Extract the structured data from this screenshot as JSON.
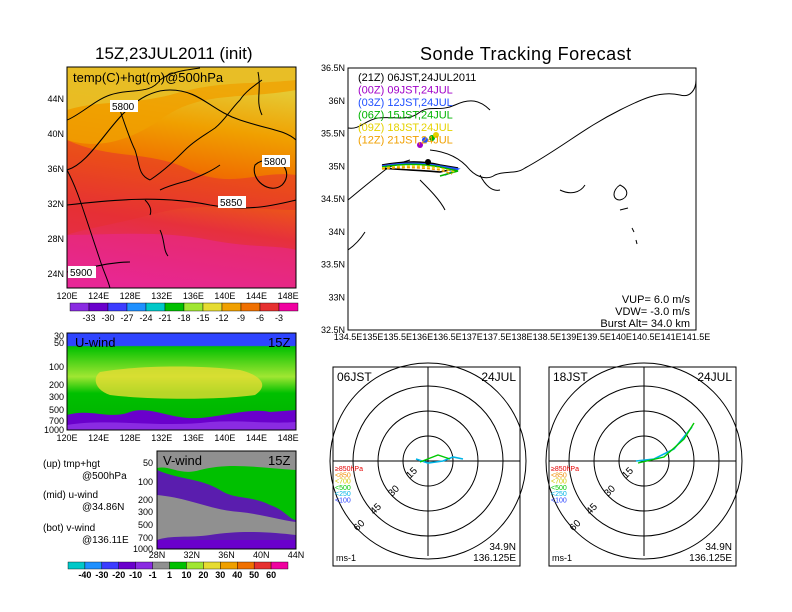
{
  "left_title": "15Z,23JUL2011 (init)",
  "right_title": "Sonde Tracking Forecast",
  "temp_panel": {
    "label": "temp(C)+hgt(m)@500hPa",
    "contours": [
      "5800",
      "5800",
      "5850",
      "5900"
    ],
    "x_ticks": [
      "120E",
      "124E",
      "128E",
      "132E",
      "136E",
      "140E",
      "144E",
      "148E"
    ],
    "y_ticks": [
      "44N",
      "40N",
      "36N",
      "32N",
      "28N",
      "24N"
    ],
    "colorbar": {
      "labels": [
        "-33",
        "-30",
        "-27",
        "-24",
        "-21",
        "-18",
        "-15",
        "-12",
        "-9",
        "-6",
        "-3"
      ],
      "colors": [
        "#8a2be2",
        "#6a00cc",
        "#3c3cff",
        "#1e90ff",
        "#00c8c8",
        "#00c000",
        "#a0e632",
        "#e6dc32",
        "#f0a000",
        "#f07000",
        "#e63030",
        "#f000a0"
      ]
    }
  },
  "u_panel": {
    "label": "U-wind",
    "time": "15Z",
    "y_ticks": [
      "30",
      "50",
      "100",
      "200",
      "300",
      "500",
      "700",
      "1000"
    ],
    "x_ticks": [
      "120E",
      "124E",
      "128E",
      "132E",
      "136E",
      "140E",
      "144E",
      "148E"
    ]
  },
  "v_panel": {
    "label": "V-wind",
    "time": "15Z",
    "y_ticks": [
      "50",
      "100",
      "200",
      "300",
      "500",
      "700",
      "1000"
    ],
    "x_ticks": [
      "28N",
      "32N",
      "36N",
      "40N",
      "44N"
    ],
    "colorbar": {
      "labels": [
        "-40",
        "-30",
        "-20",
        "-10",
        "-1",
        "1",
        "10",
        "20",
        "30",
        "40",
        "50",
        "60"
      ],
      "colors": [
        "#00c8c8",
        "#1e90ff",
        "#3c3cff",
        "#6a00cc",
        "#8a2be2",
        "#909090",
        "#00c000",
        "#a0e632",
        "#e6dc32",
        "#f0a000",
        "#f07000",
        "#e63030",
        "#f000a0"
      ]
    }
  },
  "notes": [
    {
      "line1": "(up) tmp+hgt",
      "line2": "@500hPa"
    },
    {
      "line1": "(mid) u-wind",
      "line2": "@34.86N"
    },
    {
      "line1": "(bot) v-wind",
      "line2": "@136.11E"
    }
  ],
  "track_map": {
    "x_ticks": [
      "134.5E",
      "135E",
      "135.5E",
      "136E",
      "136.5E",
      "137E",
      "137.5E",
      "138E",
      "138.5E",
      "139E",
      "139.5E",
      "140E",
      "140.5E",
      "141E",
      "141.5E"
    ],
    "y_ticks": [
      "36.5N",
      "36N",
      "35.5N",
      "35N",
      "34.5N",
      "34N",
      "33.5N",
      "33N",
      "32.5N"
    ],
    "legend": [
      {
        "text": "(21Z) 06JST,24JUL2011",
        "color": "#000000"
      },
      {
        "text": "(00Z) 09JST,24JUL",
        "color": "#a000c8"
      },
      {
        "text": "(03Z) 12JST,24JUL",
        "color": "#2050ff"
      },
      {
        "text": "(06Z) 15JST,24JUL",
        "color": "#00b400"
      },
      {
        "text": "(09Z) 18JST,24JUL",
        "color": "#e6d200"
      },
      {
        "text": "(12Z) 21JST,24JUL",
        "color": "#f0a000"
      }
    ],
    "params": [
      "VUP= 6.0 m/s",
      "VDW= -3.0 m/s",
      "Burst Alt= 34.0 km"
    ]
  },
  "hodographs": [
    {
      "time": "06JST",
      "date": "24JUL",
      "lat": "34.9N",
      "lon": "136.125E",
      "unit": "ms-1"
    },
    {
      "time": "18JST",
      "date": "24JUL",
      "lat": "34.9N",
      "lon": "136.125E",
      "unit": "ms-1"
    }
  ],
  "hodo_rings": [
    "15",
    "30",
    "45",
    "60"
  ],
  "hodo_levels": [
    {
      "text": "≥850hPa",
      "color": "#e60000"
    },
    {
      "text": "<850",
      "color": "#f08c00"
    },
    {
      "text": "<700",
      "color": "#d2c800"
    },
    {
      "text": "<500",
      "color": "#00c800"
    },
    {
      "text": "<250",
      "color": "#00b4e6"
    },
    {
      "text": "<100",
      "color": "#2840ff"
    }
  ],
  "chart_data": [
    {
      "type": "heatmap",
      "title": "15Z,23JUL2011 (init)",
      "subtitle": "temp(C)+hgt(m)@500hPa",
      "xlim": [
        120,
        149
      ],
      "ylim": [
        23,
        47
      ]
    },
    {
      "type": "heatmap",
      "title": "U-wind",
      "subtitle": "15Z"
    },
    {
      "type": "heatmap",
      "title": "V-wind",
      "subtitle": "15Z"
    },
    {
      "type": "line",
      "title": "Sonde Tracking Forecast",
      "xlim": [
        134.5,
        141.5
      ],
      "ylim": [
        32.5,
        36.5
      ]
    }
  ]
}
